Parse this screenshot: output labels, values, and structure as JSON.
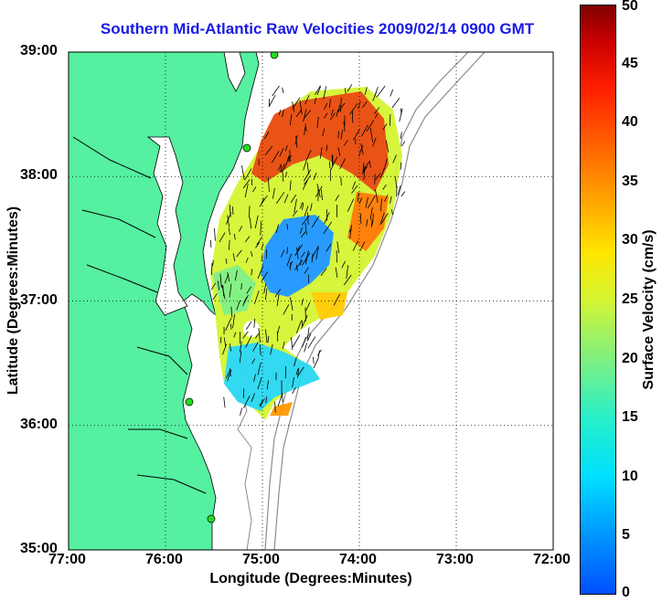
{
  "title": "Southern Mid-Atlantic Raw Velocities 2009/02/14 0900 GMT",
  "axes": {
    "xlabel": "Longitude (Degrees:Minutes)",
    "ylabel": "Latitude (Degrees:Minutes)",
    "x_ticks": [
      "77:00",
      "76:00",
      "75:00",
      "74:00",
      "73:00",
      "72:00"
    ],
    "y_ticks": [
      "39:00",
      "38:00",
      "37:00",
      "36:00",
      "35:00"
    ],
    "grid": "dotted"
  },
  "colorbar": {
    "label": "Surface Velocity (cm/s)",
    "ticks": [
      "50",
      "45",
      "40",
      "35",
      "30",
      "25",
      "20",
      "15",
      "10",
      "5",
      "0"
    ],
    "range": [
      0,
      50
    ]
  },
  "colors": {
    "land": "#55f0a0",
    "title": "#1a1ae6",
    "bathymetry": "#8c8c8c",
    "station": "#22dd22"
  }
}
